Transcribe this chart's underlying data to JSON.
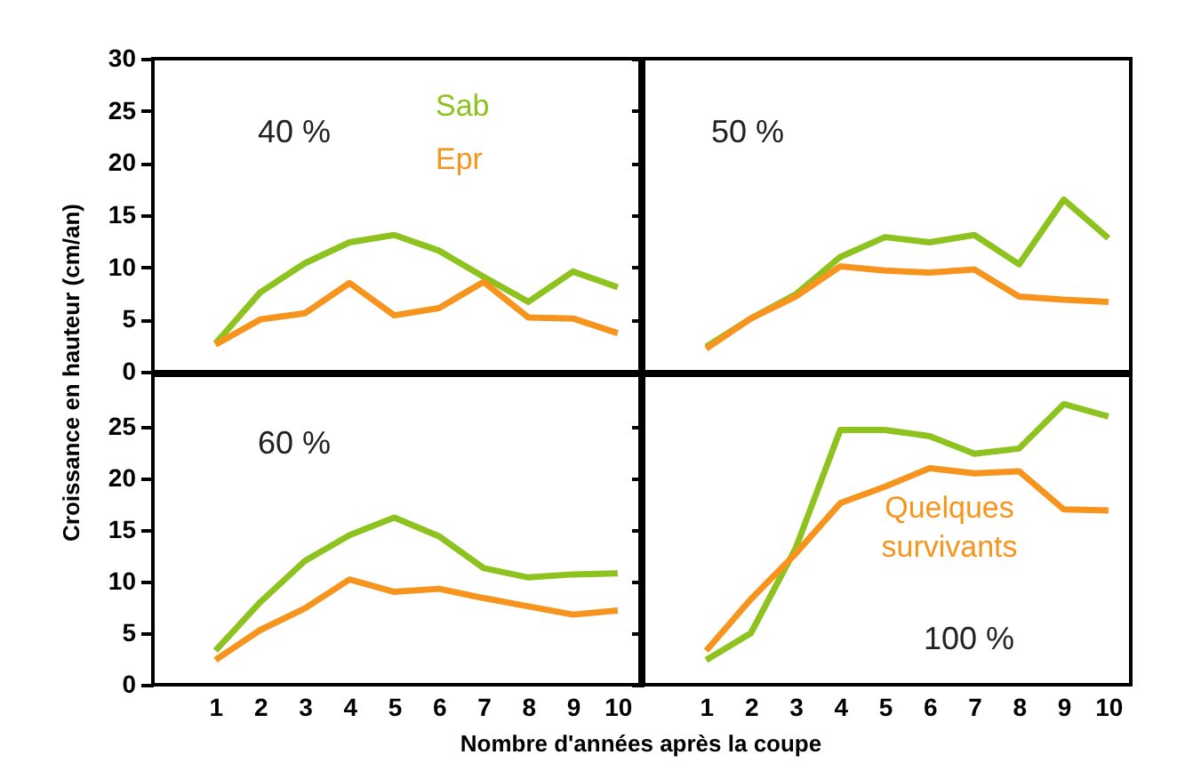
{
  "chart_data": [
    {
      "type": "line",
      "x": [
        1,
        2,
        3,
        4,
        5,
        6,
        7,
        8,
        9,
        10
      ],
      "xlim": [
        -0.4,
        10.5
      ],
      "xticks": [
        1,
        2,
        3,
        4,
        5,
        6,
        7,
        8,
        9,
        10
      ],
      "ylim": [
        0,
        30
      ],
      "yticks": [
        0,
        5,
        10,
        15,
        20,
        25,
        30
      ],
      "tick_labels": "y",
      "ylabel": "Croissance en hauteur (cm/an)",
      "annotations": [
        "40 %"
      ],
      "series": [
        {
          "name": "Sab",
          "color": "#8dc21f",
          "values": [
            2.7,
            7.6,
            10.4,
            12.4,
            13.1,
            11.6,
            9.1,
            6.7,
            9.6,
            8.1
          ]
        },
        {
          "name": "Epr",
          "color": "#f7941d",
          "values": [
            2.6,
            5.0,
            5.6,
            8.5,
            5.4,
            6.1,
            8.6,
            5.2,
            5.1,
            3.7
          ]
        }
      ]
    },
    {
      "type": "line",
      "x": [
        1,
        2,
        3,
        4,
        5,
        6,
        7,
        8,
        9,
        10
      ],
      "xlim": [
        -0.4,
        10.5
      ],
      "xticks": [
        1,
        2,
        3,
        4,
        5,
        6,
        7,
        8,
        9,
        10
      ],
      "ylim": [
        0,
        30
      ],
      "yticks": [
        0,
        5,
        10,
        15,
        20,
        25,
        30
      ],
      "tick_labels": false,
      "annotations": [
        "50 %"
      ],
      "series": [
        {
          "color": "#8dc21f",
          "values": [
            2.4,
            5.1,
            7.4,
            11.0,
            12.9,
            12.4,
            13.1,
            10.3,
            16.5,
            12.8
          ]
        },
        {
          "color": "#f7941d",
          "values": [
            2.2,
            5.1,
            7.2,
            10.1,
            9.7,
            9.5,
            9.8,
            7.2,
            6.9,
            6.7
          ]
        }
      ]
    },
    {
      "type": "line",
      "x": [
        1,
        2,
        3,
        4,
        5,
        6,
        7,
        8,
        9,
        10
      ],
      "xlim": [
        -0.4,
        10.5
      ],
      "xticks": [
        1,
        2,
        3,
        4,
        5,
        6,
        7,
        8,
        9,
        10
      ],
      "ylim": [
        0,
        30
      ],
      "yticks": [
        0,
        5,
        10,
        15,
        20,
        25
      ],
      "xlabel": "Nombre d'années après la coupe",
      "annotations": [
        "60 %"
      ],
      "series": [
        {
          "color": "#8dc21f",
          "values": [
            3.3,
            8.0,
            12.0,
            14.5,
            16.2,
            14.4,
            11.3,
            10.4,
            10.7,
            10.8
          ]
        },
        {
          "color": "#f7941d",
          "values": [
            2.4,
            5.3,
            7.4,
            10.2,
            9.0,
            9.3,
            8.4,
            7.6,
            6.8,
            7.2
          ]
        }
      ]
    },
    {
      "type": "line",
      "x": [
        1,
        2,
        3,
        4,
        5,
        6,
        7,
        8,
        9,
        10
      ],
      "xlim": [
        -0.4,
        10.5
      ],
      "xticks": [
        1,
        2,
        3,
        4,
        5,
        6,
        7,
        8,
        9,
        10
      ],
      "ylim": [
        0,
        30
      ],
      "yticks": [
        0,
        5,
        10,
        15,
        20,
        25
      ],
      "tick_labels": "x",
      "annotations": [
        "100 %",
        "Quelques survivants"
      ],
      "series": [
        {
          "color": "#8dc21f",
          "values": [
            2.4,
            5.0,
            13.2,
            24.7,
            24.7,
            24.1,
            22.4,
            22.9,
            27.2,
            26.0
          ]
        },
        {
          "color": "#f7941d",
          "values": [
            3.3,
            8.3,
            12.7,
            17.6,
            19.2,
            21.0,
            20.5,
            20.7,
            17.0,
            16.9
          ]
        }
      ]
    }
  ]
}
